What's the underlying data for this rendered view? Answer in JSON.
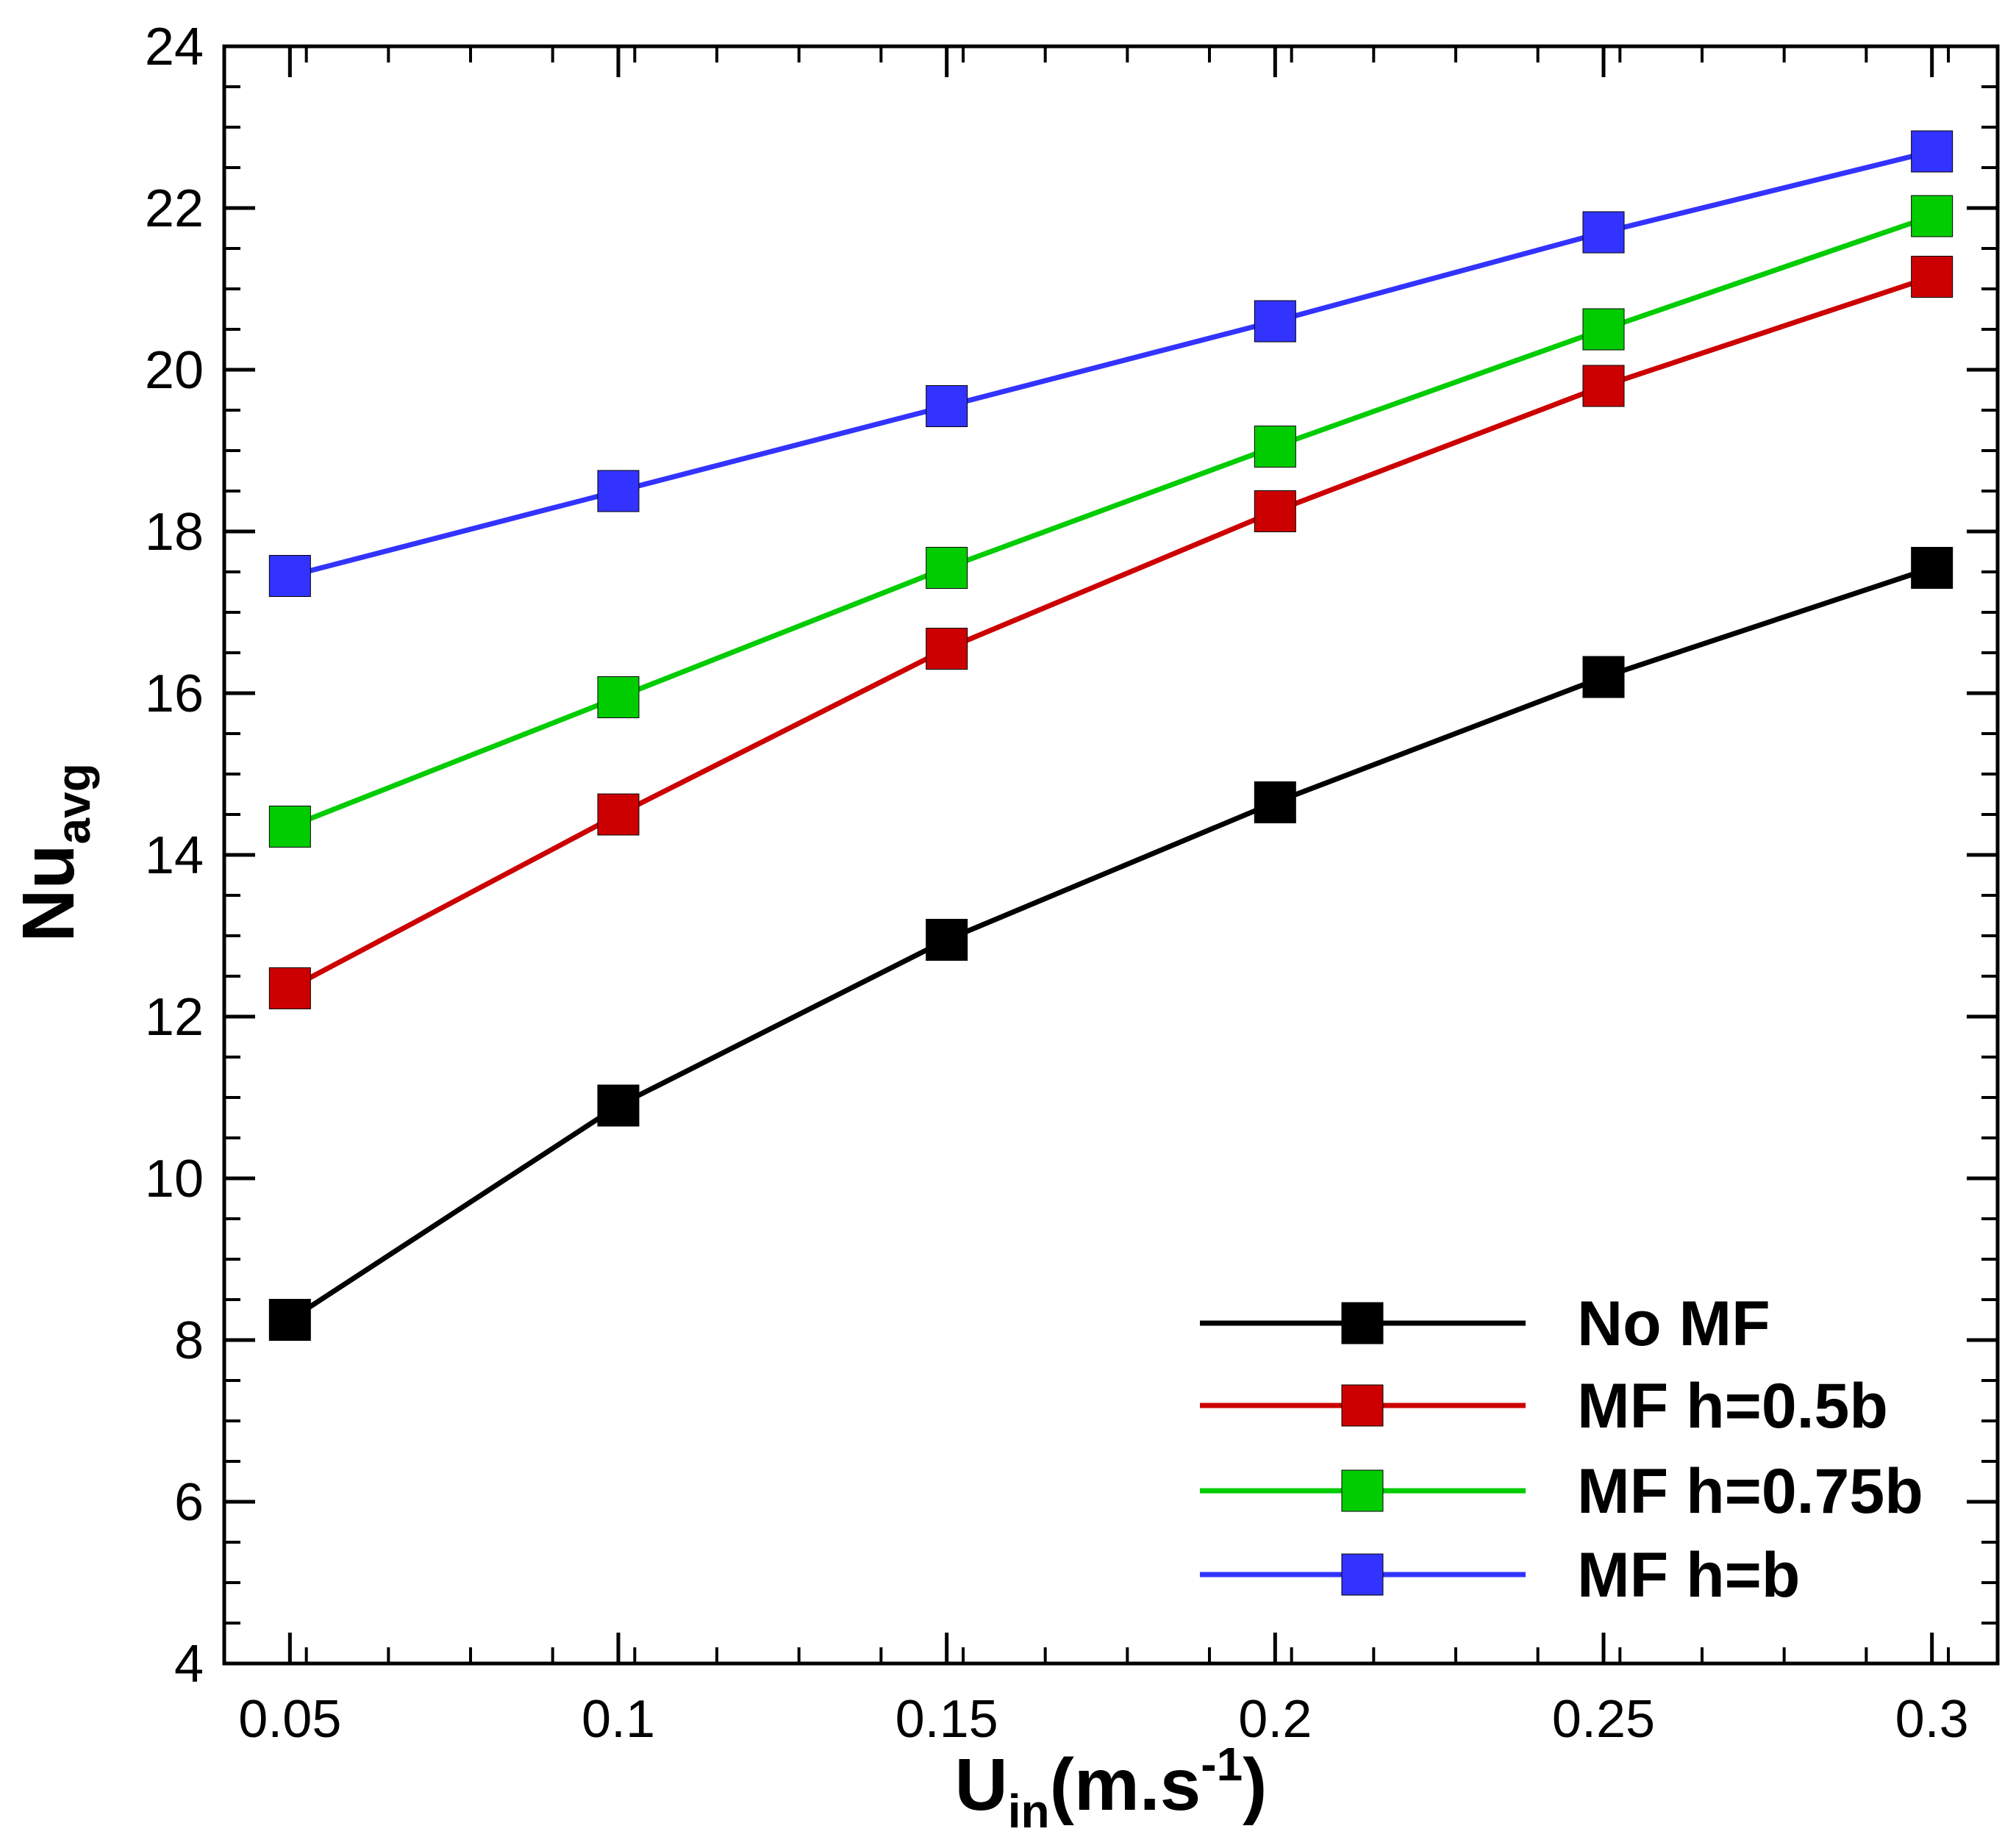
{
  "chart_data": {
    "type": "line",
    "title": "",
    "xlabel": {
      "main": "U",
      "sub": "in",
      "unit_open": "(m.s",
      "sup": "-1",
      "unit_close": ")"
    },
    "ylabel": {
      "main": "Nu",
      "sub": "avg"
    },
    "x": [
      0.05,
      0.1,
      0.15,
      0.2,
      0.25,
      0.3
    ],
    "xlim": [
      0.04,
      0.31
    ],
    "ylim": [
      4,
      24
    ],
    "x_ticks": [
      0.05,
      0.1,
      0.15,
      0.2,
      0.25,
      0.3
    ],
    "x_tick_labels": [
      "0.05",
      "0.1",
      "0.15",
      "0.2",
      "0.25",
      "0.3"
    ],
    "y_ticks": [
      4,
      6,
      8,
      10,
      12,
      14,
      16,
      18,
      20,
      22,
      24
    ],
    "y_tick_labels": [
      "4",
      "6",
      "8",
      "10",
      "12",
      "14",
      "16",
      "18",
      "20",
      "22",
      "24"
    ],
    "grid": false,
    "legend_position": "bottom-right",
    "series": [
      {
        "name": "No MF",
        "color": "#000000",
        "values": [
          8.25,
          10.9,
          12.95,
          14.65,
          16.2,
          17.55
        ]
      },
      {
        "name": "MF h=0.5b",
        "color": "#cc0000",
        "values": [
          12.35,
          14.5,
          16.55,
          18.25,
          19.8,
          21.15
        ]
      },
      {
        "name": "MF h=0.75b",
        "color": "#00cc00",
        "values": [
          14.35,
          15.95,
          17.55,
          19.05,
          20.5,
          21.9
        ]
      },
      {
        "name": "MF h=b",
        "color": "#3333ff",
        "values": [
          17.45,
          18.5,
          19.55,
          20.6,
          21.7,
          22.7
        ]
      }
    ]
  }
}
